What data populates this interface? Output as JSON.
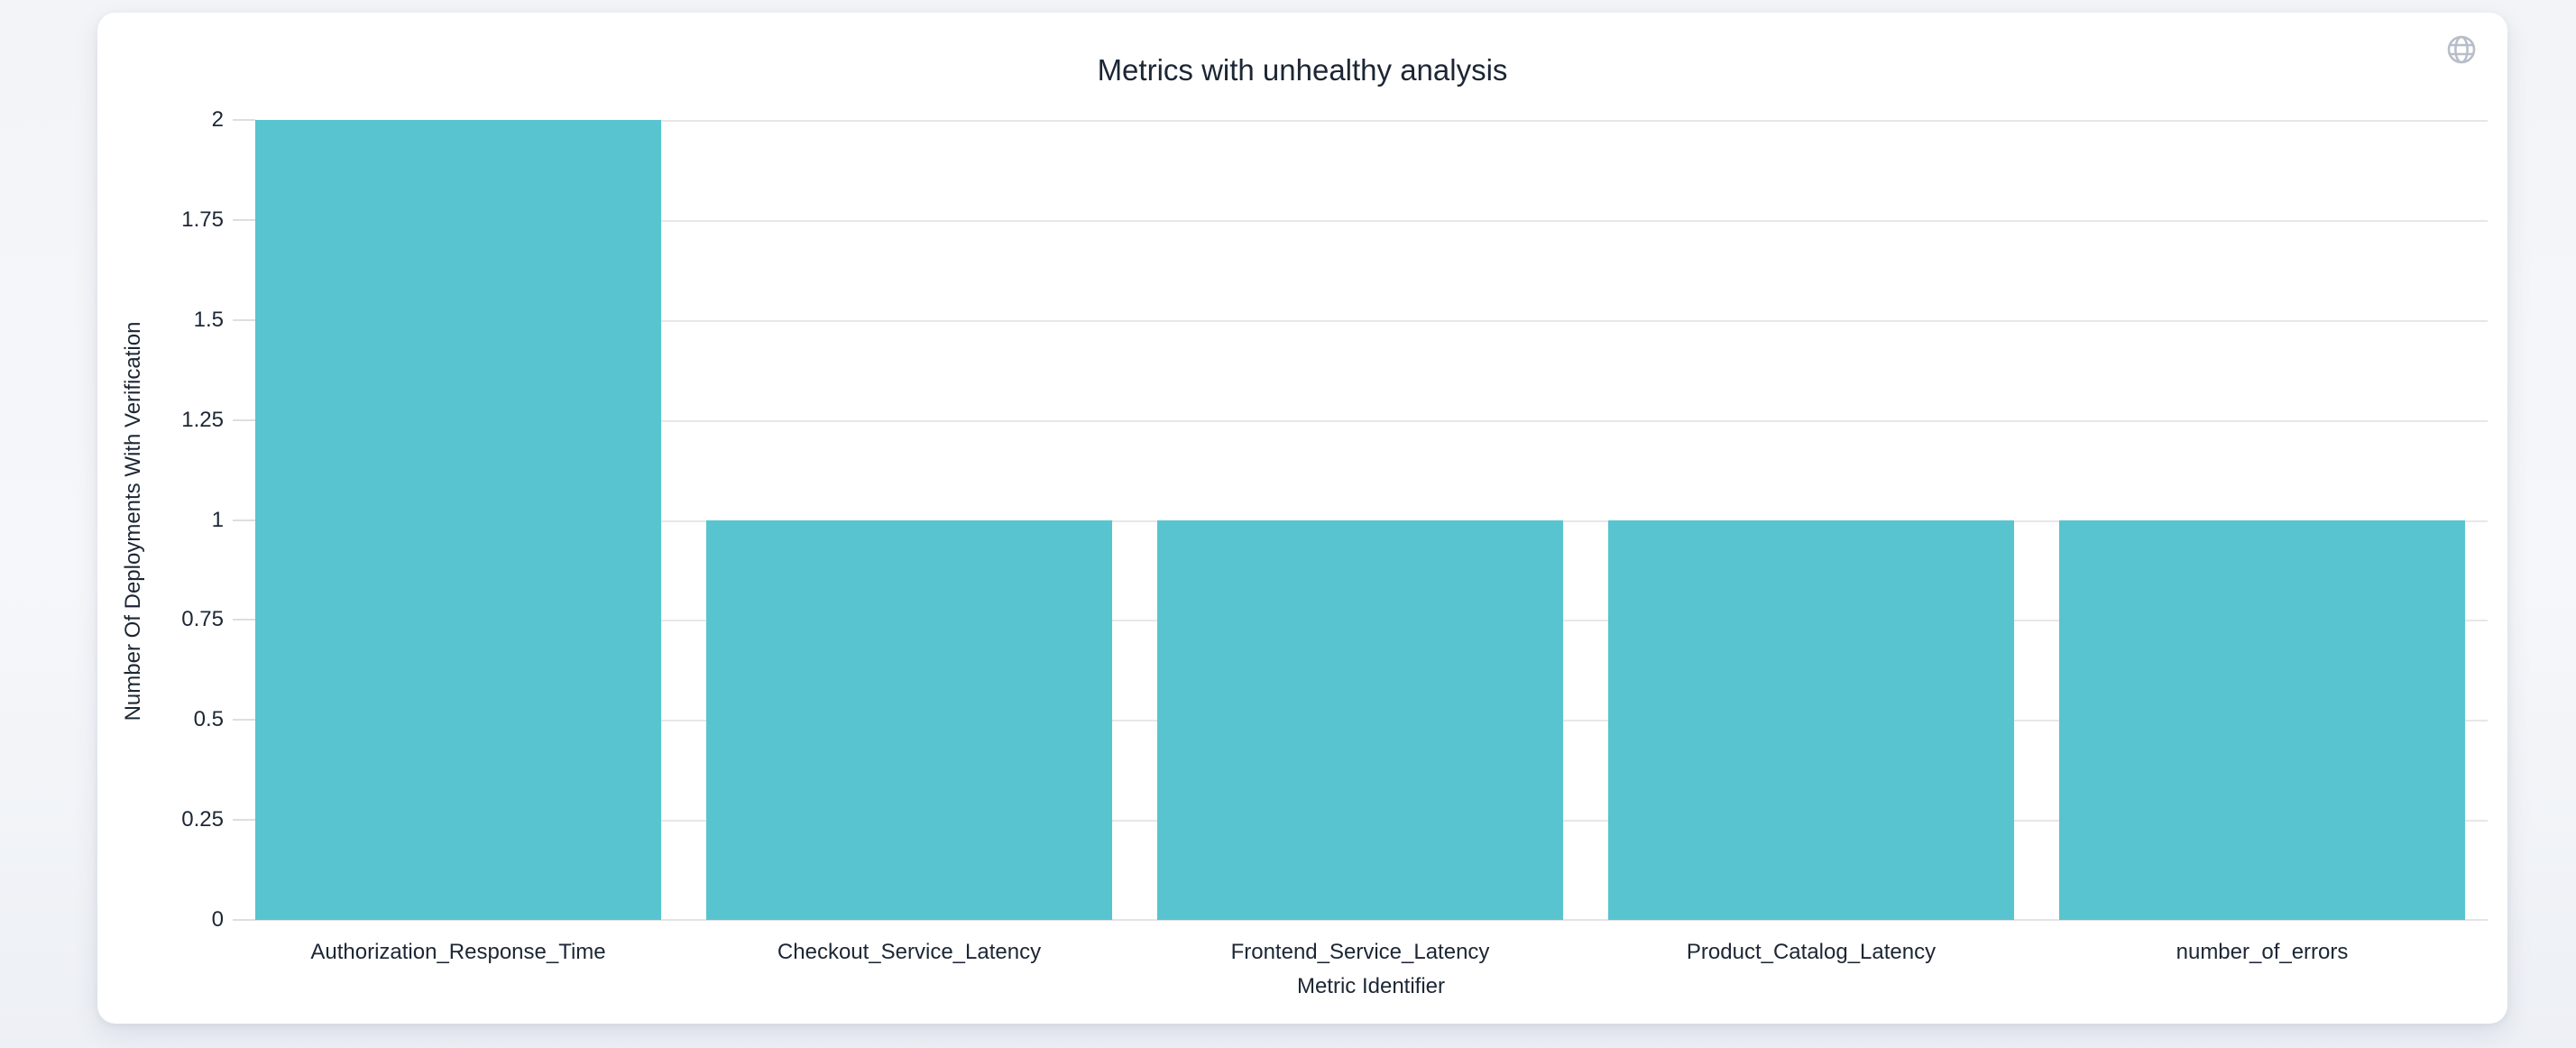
{
  "card": {
    "globe_icon": "globe-icon"
  },
  "colors": {
    "bar": "#58c4cf",
    "gridline": "#e7e7e7",
    "axis_text": "#1c2634",
    "icon_gray": "#b7bec9",
    "card_bg": "#ffffff",
    "page_bg": "#f3f5f8"
  },
  "chart_data": {
    "type": "bar",
    "title": "Metrics with unhealthy analysis",
    "xlabel": "Metric Identifier",
    "ylabel": "Number Of Deployments With Verification",
    "categories": [
      "Authorization_Response_Time",
      "Checkout_Service_Latency",
      "Frontend_Service_Latency",
      "Product_Catalog_Latency",
      "number_of_errors"
    ],
    "values": [
      2,
      1,
      1,
      1,
      1
    ],
    "ylim": [
      0,
      2
    ],
    "yticks": [
      "0",
      "0.25",
      "0.5",
      "0.75",
      "1",
      "1.25",
      "1.5",
      "1.75",
      "2"
    ],
    "grid": true,
    "legend": false,
    "bar_color": "#58c4cf"
  }
}
